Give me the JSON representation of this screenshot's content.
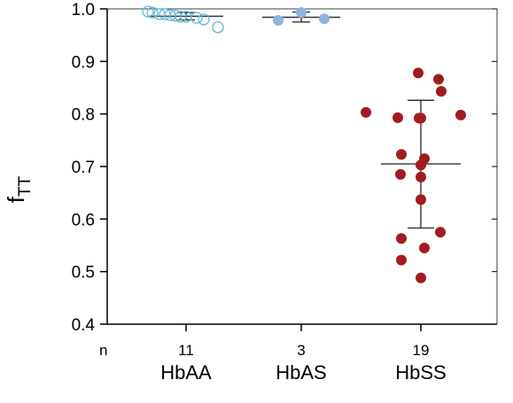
{
  "chart_data": {
    "type": "scatter",
    "ylabel": "f",
    "ylabel_subscript": "TT",
    "ylim": [
      0.4,
      1.0
    ],
    "yticks": [
      "0.4",
      "0.5",
      "0.6",
      "0.7",
      "0.8",
      "0.9",
      "1.0"
    ],
    "n_label": "n",
    "groups": [
      {
        "category": "HbAA",
        "n": "11",
        "color": "#5fb8d8",
        "marker": "open-circle",
        "mean": 0.986,
        "sd_low": 0.979,
        "sd_high": 0.993,
        "values": [
          0.995,
          0.993,
          0.99,
          0.99,
          0.988,
          0.987,
          0.985,
          0.985,
          0.983,
          0.98,
          0.965
        ]
      },
      {
        "category": "HbAS",
        "n": "3",
        "color": "#8fb3dc",
        "marker": "filled-circle",
        "mean": 0.984,
        "sd_low": 0.975,
        "sd_high": 0.994,
        "values": [
          0.978,
          0.993,
          0.981
        ]
      },
      {
        "category": "HbSS",
        "n": "19",
        "color": "#a01c22",
        "marker": "filled-circle",
        "mean": 0.705,
        "sd_low": 0.583,
        "sd_high": 0.826,
        "values": [
          0.878,
          0.866,
          0.843,
          0.803,
          0.798,
          0.793,
          0.792,
          0.792,
          0.723,
          0.715,
          0.703,
          0.685,
          0.68,
          0.637,
          0.575,
          0.563,
          0.545,
          0.522,
          0.488
        ]
      }
    ]
  }
}
